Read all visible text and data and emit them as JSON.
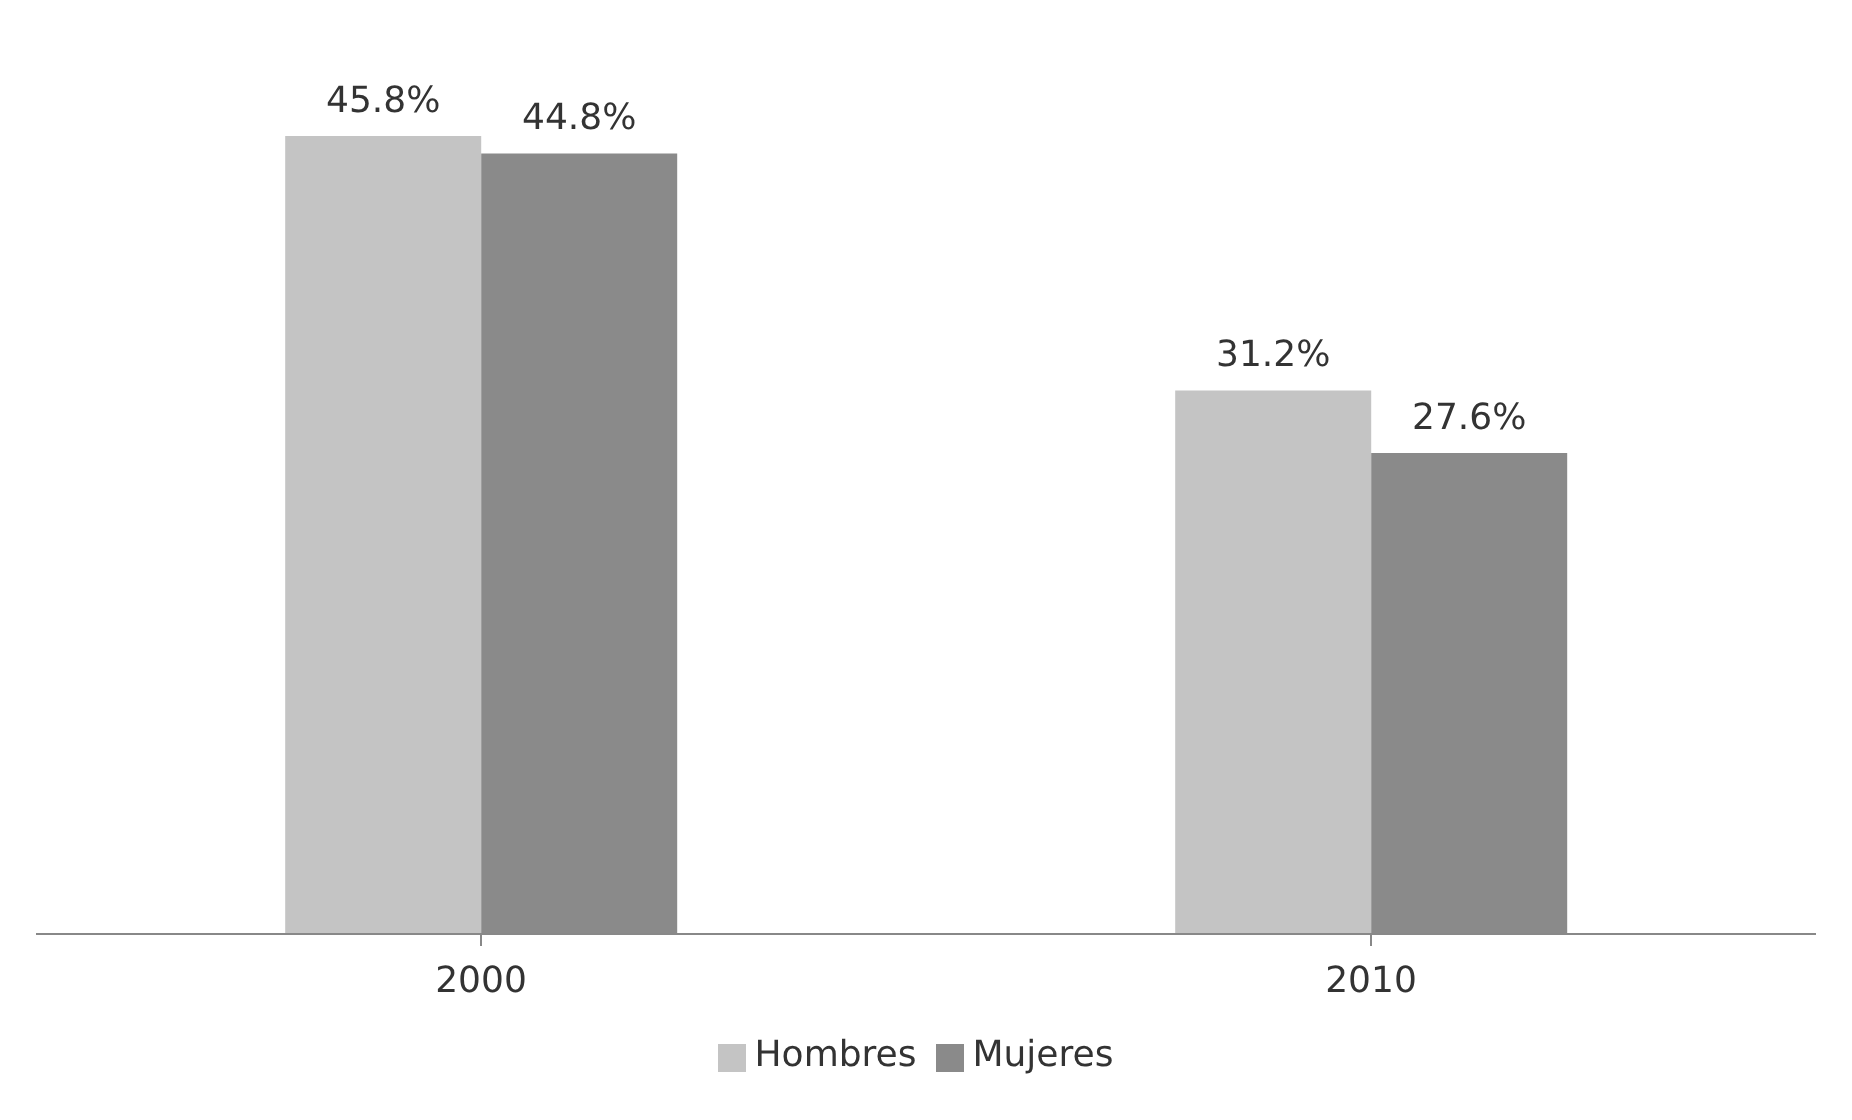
{
  "chart_data": {
    "type": "bar",
    "categories": [
      "2000",
      "2010"
    ],
    "series": [
      {
        "name": "Hombres",
        "color": "#c4c4c4",
        "values": [
          45.8,
          31.2
        ],
        "value_labels": [
          "45.8%",
          "31.2%"
        ]
      },
      {
        "name": "Mujeres",
        "color": "#8a8a8a",
        "values": [
          44.8,
          27.6
        ],
        "value_labels": [
          "44.8%",
          "27.6%"
        ]
      }
    ],
    "grid": false,
    "legend": "bottom"
  }
}
